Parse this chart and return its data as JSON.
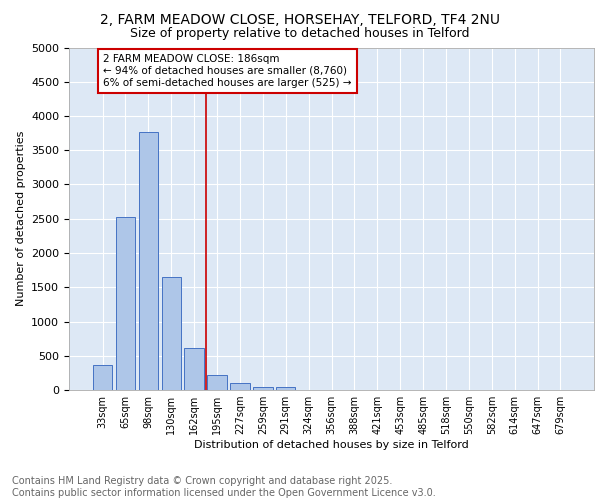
{
  "title1": "2, FARM MEADOW CLOSE, HORSEHAY, TELFORD, TF4 2NU",
  "title2": "Size of property relative to detached houses in Telford",
  "xlabel": "Distribution of detached houses by size in Telford",
  "ylabel": "Number of detached properties",
  "categories": [
    "33sqm",
    "65sqm",
    "98sqm",
    "130sqm",
    "162sqm",
    "195sqm",
    "227sqm",
    "259sqm",
    "291sqm",
    "324sqm",
    "356sqm",
    "388sqm",
    "421sqm",
    "453sqm",
    "485sqm",
    "518sqm",
    "550sqm",
    "582sqm",
    "614sqm",
    "647sqm",
    "679sqm"
  ],
  "values": [
    370,
    2530,
    3760,
    1650,
    615,
    225,
    105,
    48,
    45,
    0,
    0,
    0,
    0,
    0,
    0,
    0,
    0,
    0,
    0,
    0,
    0
  ],
  "bar_color": "#aec6e8",
  "bar_edge_color": "#4472c4",
  "vline_x_idx": 4.5,
  "vline_color": "#cc0000",
  "annotation_text": "2 FARM MEADOW CLOSE: 186sqm\n← 94% of detached houses are smaller (8,760)\n6% of semi-detached houses are larger (525) →",
  "annotation_box_color": "#ffffff",
  "annotation_box_edge": "#cc0000",
  "background_color": "#dde8f5",
  "grid_color": "#ffffff",
  "ylim": [
    0,
    5000
  ],
  "yticks": [
    0,
    500,
    1000,
    1500,
    2000,
    2500,
    3000,
    3500,
    4000,
    4500,
    5000
  ],
  "footer_text": "Contains HM Land Registry data © Crown copyright and database right 2025.\nContains public sector information licensed under the Open Government Licence v3.0.",
  "title1_fontsize": 10,
  "title2_fontsize": 9,
  "footer_fontsize": 7
}
